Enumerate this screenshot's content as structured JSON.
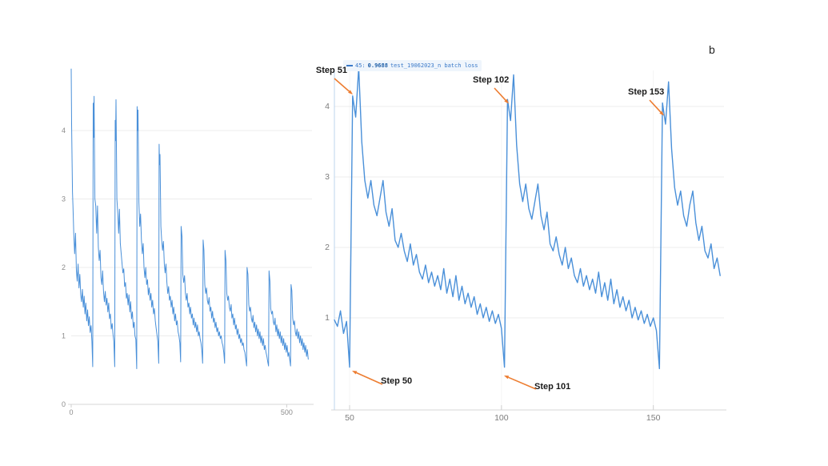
{
  "figure": {
    "panel_label": "b",
    "accent_color": "#ED7D31",
    "line_color": "#4a90d9"
  },
  "tooltip": {
    "step_label": "45:",
    "value": "0.9688",
    "series_name": "test_19062023_n batch loss",
    "text_color": "#3b7ac9",
    "value_color": "#1f5fa8",
    "bg_color": "#eff5fc"
  },
  "chart_data": [
    {
      "id": "overview",
      "type": "line",
      "title": "",
      "xlabel": "",
      "ylabel": "",
      "x_range": [
        0,
        555
      ],
      "y_range": [
        0,
        5
      ],
      "x_ticks": [
        0,
        500
      ],
      "y_ticks": [
        0,
        1,
        2,
        3,
        4
      ],
      "grid": "horizontal",
      "legend": "none",
      "line_color": "#4a90d9",
      "points": [
        [
          0,
          4.9
        ],
        [
          1,
          4.1
        ],
        [
          2,
          3.55
        ],
        [
          3,
          3.1
        ],
        [
          4,
          2.9
        ],
        [
          6,
          2.5
        ],
        [
          8,
          2.2
        ],
        [
          10,
          2.5
        ],
        [
          12,
          1.95
        ],
        [
          14,
          1.8
        ],
        [
          16,
          2.05
        ],
        [
          18,
          1.7
        ],
        [
          20,
          1.9
        ],
        [
          22,
          1.6
        ],
        [
          24,
          1.5
        ],
        [
          26,
          1.68
        ],
        [
          28,
          1.42
        ],
        [
          30,
          1.58
        ],
        [
          32,
          1.32
        ],
        [
          34,
          1.48
        ],
        [
          36,
          1.22
        ],
        [
          38,
          1.38
        ],
        [
          40,
          1.15
        ],
        [
          42,
          1.28
        ],
        [
          44,
          1.05
        ],
        [
          46,
          1.15
        ],
        [
          48,
          0.92
        ],
        [
          50,
          0.55
        ],
        [
          51,
          4.4
        ],
        [
          52,
          3.9
        ],
        [
          53,
          4.5
        ],
        [
          55,
          3.0
        ],
        [
          57,
          2.9
        ],
        [
          59,
          2.5
        ],
        [
          61,
          2.9
        ],
        [
          63,
          2.3
        ],
        [
          65,
          2.1
        ],
        [
          67,
          2.25
        ],
        [
          69,
          1.85
        ],
        [
          71,
          1.75
        ],
        [
          73,
          1.95
        ],
        [
          75,
          1.65
        ],
        [
          77,
          1.5
        ],
        [
          79,
          1.65
        ],
        [
          81,
          1.45
        ],
        [
          83,
          1.55
        ],
        [
          85,
          1.35
        ],
        [
          87,
          1.48
        ],
        [
          89,
          1.25
        ],
        [
          91,
          1.32
        ],
        [
          93,
          1.1
        ],
        [
          95,
          1.18
        ],
        [
          97,
          1.02
        ],
        [
          99,
          0.92
        ],
        [
          101,
          0.55
        ],
        [
          102,
          4.15
        ],
        [
          103,
          3.85
        ],
        [
          104,
          4.45
        ],
        [
          106,
          3.0
        ],
        [
          108,
          2.8
        ],
        [
          110,
          2.5
        ],
        [
          112,
          2.85
        ],
        [
          114,
          2.35
        ],
        [
          116,
          2.2
        ],
        [
          118,
          2.05
        ],
        [
          120,
          1.92
        ],
        [
          122,
          1.98
        ],
        [
          124,
          1.72
        ],
        [
          126,
          1.78
        ],
        [
          128,
          1.55
        ],
        [
          130,
          1.62
        ],
        [
          132,
          1.45
        ],
        [
          134,
          1.6
        ],
        [
          136,
          1.35
        ],
        [
          138,
          1.5
        ],
        [
          140,
          1.25
        ],
        [
          142,
          1.35
        ],
        [
          144,
          1.12
        ],
        [
          146,
          1.2
        ],
        [
          148,
          1.0
        ],
        [
          150,
          0.95
        ],
        [
          152,
          0.52
        ],
        [
          153,
          4.35
        ],
        [
          154,
          4.0
        ],
        [
          155,
          4.3
        ],
        [
          157,
          2.95
        ],
        [
          159,
          2.6
        ],
        [
          161,
          2.78
        ],
        [
          163,
          2.4
        ],
        [
          165,
          2.2
        ],
        [
          167,
          2.35
        ],
        [
          169,
          2.0
        ],
        [
          171,
          1.85
        ],
        [
          173,
          2.0
        ],
        [
          175,
          1.75
        ],
        [
          177,
          1.82
        ],
        [
          179,
          1.6
        ],
        [
          181,
          1.7
        ],
        [
          183,
          1.52
        ],
        [
          185,
          1.62
        ],
        [
          187,
          1.42
        ],
        [
          189,
          1.52
        ],
        [
          191,
          1.32
        ],
        [
          193,
          1.4
        ],
        [
          195,
          1.22
        ],
        [
          197,
          1.12
        ],
        [
          199,
          1.02
        ],
        [
          201,
          0.92
        ],
        [
          203,
          0.6
        ],
        [
          204,
          3.8
        ],
        [
          205,
          3.5
        ],
        [
          206,
          3.65
        ],
        [
          208,
          2.6
        ],
        [
          210,
          2.4
        ],
        [
          212,
          2.25
        ],
        [
          214,
          2.38
        ],
        [
          216,
          2.05
        ],
        [
          218,
          1.92
        ],
        [
          220,
          2.05
        ],
        [
          222,
          1.78
        ],
        [
          224,
          1.62
        ],
        [
          226,
          1.72
        ],
        [
          228,
          1.52
        ],
        [
          230,
          1.58
        ],
        [
          232,
          1.42
        ],
        [
          234,
          1.52
        ],
        [
          236,
          1.32
        ],
        [
          238,
          1.42
        ],
        [
          240,
          1.22
        ],
        [
          242,
          1.32
        ],
        [
          244,
          1.16
        ],
        [
          246,
          1.22
        ],
        [
          248,
          1.06
        ],
        [
          250,
          1.0
        ],
        [
          252,
          0.9
        ],
        [
          254,
          0.62
        ],
        [
          255,
          2.6
        ],
        [
          257,
          2.45
        ],
        [
          259,
          1.9
        ],
        [
          261,
          1.78
        ],
        [
          263,
          1.88
        ],
        [
          265,
          1.62
        ],
        [
          267,
          1.52
        ],
        [
          269,
          1.62
        ],
        [
          271,
          1.42
        ],
        [
          273,
          1.48
        ],
        [
          275,
          1.32
        ],
        [
          277,
          1.42
        ],
        [
          279,
          1.26
        ],
        [
          281,
          1.32
        ],
        [
          283,
          1.16
        ],
        [
          285,
          1.26
        ],
        [
          287,
          1.12
        ],
        [
          289,
          1.2
        ],
        [
          291,
          1.06
        ],
        [
          293,
          1.16
        ],
        [
          295,
          1.0
        ],
        [
          297,
          1.06
        ],
        [
          299,
          0.96
        ],
        [
          301,
          0.9
        ],
        [
          303,
          0.8
        ],
        [
          305,
          0.6
        ],
        [
          306,
          2.4
        ],
        [
          308,
          2.25
        ],
        [
          310,
          1.75
        ],
        [
          312,
          1.62
        ],
        [
          314,
          1.7
        ],
        [
          316,
          1.52
        ],
        [
          318,
          1.46
        ],
        [
          320,
          1.56
        ],
        [
          322,
          1.36
        ],
        [
          324,
          1.42
        ],
        [
          326,
          1.26
        ],
        [
          328,
          1.36
        ],
        [
          330,
          1.2
        ],
        [
          332,
          1.26
        ],
        [
          334,
          1.12
        ],
        [
          336,
          1.2
        ],
        [
          338,
          1.06
        ],
        [
          340,
          1.12
        ],
        [
          342,
          1.0
        ],
        [
          344,
          1.06
        ],
        [
          346,
          0.96
        ],
        [
          348,
          1.0
        ],
        [
          350,
          0.9
        ],
        [
          352,
          0.86
        ],
        [
          354,
          0.76
        ],
        [
          356,
          0.6
        ],
        [
          357,
          2.25
        ],
        [
          359,
          2.1
        ],
        [
          361,
          1.62
        ],
        [
          363,
          1.52
        ],
        [
          365,
          1.58
        ],
        [
          367,
          1.42
        ],
        [
          369,
          1.36
        ],
        [
          371,
          1.46
        ],
        [
          373,
          1.26
        ],
        [
          375,
          1.32
        ],
        [
          377,
          1.16
        ],
        [
          379,
          1.26
        ],
        [
          381,
          1.1
        ],
        [
          383,
          1.16
        ],
        [
          385,
          1.02
        ],
        [
          387,
          1.1
        ],
        [
          389,
          0.96
        ],
        [
          391,
          1.02
        ],
        [
          393,
          0.9
        ],
        [
          395,
          0.96
        ],
        [
          397,
          0.86
        ],
        [
          399,
          0.9
        ],
        [
          401,
          0.8
        ],
        [
          403,
          0.76
        ],
        [
          405,
          0.66
        ],
        [
          407,
          0.56
        ],
        [
          408,
          2.0
        ],
        [
          410,
          1.9
        ],
        [
          412,
          1.46
        ],
        [
          414,
          1.36
        ],
        [
          416,
          1.42
        ],
        [
          418,
          1.26
        ],
        [
          420,
          1.2
        ],
        [
          422,
          1.3
        ],
        [
          424,
          1.12
        ],
        [
          426,
          1.2
        ],
        [
          428,
          1.06
        ],
        [
          430,
          1.16
        ],
        [
          432,
          1.0
        ],
        [
          434,
          1.1
        ],
        [
          436,
          0.96
        ],
        [
          438,
          1.06
        ],
        [
          440,
          0.9
        ],
        [
          442,
          1.0
        ],
        [
          444,
          0.86
        ],
        [
          446,
          0.96
        ],
        [
          448,
          0.8
        ],
        [
          450,
          0.86
        ],
        [
          452,
          0.76
        ],
        [
          454,
          0.7
        ],
        [
          456,
          0.62
        ],
        [
          458,
          0.56
        ],
        [
          459,
          1.95
        ],
        [
          461,
          1.8
        ],
        [
          463,
          1.4
        ],
        [
          465,
          1.32
        ],
        [
          467,
          1.36
        ],
        [
          469,
          1.2
        ],
        [
          471,
          1.16
        ],
        [
          473,
          1.26
        ],
        [
          475,
          1.06
        ],
        [
          477,
          1.16
        ],
        [
          479,
          1.0
        ],
        [
          481,
          1.1
        ],
        [
          483,
          0.96
        ],
        [
          485,
          1.06
        ],
        [
          487,
          0.9
        ],
        [
          489,
          1.0
        ],
        [
          491,
          0.86
        ],
        [
          493,
          0.96
        ],
        [
          495,
          0.8
        ],
        [
          497,
          0.9
        ],
        [
          499,
          0.76
        ],
        [
          501,
          0.86
        ],
        [
          503,
          0.7
        ],
        [
          505,
          0.76
        ],
        [
          507,
          0.66
        ],
        [
          509,
          0.56
        ],
        [
          510,
          1.75
        ],
        [
          512,
          1.66
        ],
        [
          514,
          1.26
        ],
        [
          516,
          1.16
        ],
        [
          518,
          1.22
        ],
        [
          520,
          1.06
        ],
        [
          522,
          1.0
        ],
        [
          524,
          1.1
        ],
        [
          526,
          0.96
        ],
        [
          528,
          1.06
        ],
        [
          530,
          0.9
        ],
        [
          532,
          1.0
        ],
        [
          534,
          0.86
        ],
        [
          536,
          0.96
        ],
        [
          538,
          0.8
        ],
        [
          540,
          0.9
        ],
        [
          542,
          0.76
        ],
        [
          544,
          0.86
        ],
        [
          546,
          0.7
        ],
        [
          548,
          0.8
        ],
        [
          550,
          0.66
        ]
      ]
    },
    {
      "id": "zoomed",
      "type": "line",
      "title": "",
      "xlabel": "",
      "ylabel": "",
      "x_range": [
        45,
        173
      ],
      "y_range": [
        0,
        4.6
      ],
      "x_ticks": [
        50,
        100,
        150
      ],
      "y_ticks": [
        1,
        2,
        3,
        4
      ],
      "grid": "both",
      "legend": "none",
      "line_color": "#4a90d9",
      "x_start": 45,
      "values": [
        0.97,
        0.88,
        1.1,
        0.78,
        0.95,
        0.3,
        4.15,
        3.85,
        4.55,
        3.5,
        2.95,
        2.7,
        2.95,
        2.6,
        2.45,
        2.7,
        2.95,
        2.5,
        2.3,
        2.55,
        2.1,
        2.0,
        2.2,
        1.95,
        1.8,
        2.05,
        1.75,
        1.9,
        1.65,
        1.55,
        1.75,
        1.5,
        1.65,
        1.45,
        1.6,
        1.4,
        1.7,
        1.35,
        1.55,
        1.3,
        1.6,
        1.25,
        1.45,
        1.2,
        1.35,
        1.15,
        1.3,
        1.05,
        1.2,
        1.0,
        1.15,
        0.95,
        1.1,
        0.92,
        1.05,
        0.85,
        0.3,
        4.1,
        3.8,
        4.45,
        3.45,
        2.9,
        2.65,
        2.9,
        2.55,
        2.4,
        2.65,
        2.9,
        2.45,
        2.25,
        2.5,
        2.05,
        1.95,
        2.15,
        1.9,
        1.75,
        2.0,
        1.7,
        1.85,
        1.6,
        1.5,
        1.7,
        1.45,
        1.6,
        1.4,
        1.55,
        1.35,
        1.65,
        1.3,
        1.5,
        1.25,
        1.55,
        1.2,
        1.4,
        1.15,
        1.3,
        1.1,
        1.25,
        1.0,
        1.15,
        0.97,
        1.1,
        0.92,
        1.05,
        0.88,
        1.0,
        0.82,
        0.28,
        4.05,
        3.75,
        4.35,
        3.4,
        2.85,
        2.6,
        2.8,
        2.45,
        2.3,
        2.6,
        2.8,
        2.35,
        2.1,
        2.3,
        1.95,
        1.85,
        2.05,
        1.7,
        1.85,
        1.6
      ],
      "annotations": [
        {
          "label": "Step 51",
          "step": 51,
          "position": "peak"
        },
        {
          "label": "Step 102",
          "step": 102,
          "position": "peak"
        },
        {
          "label": "Step 153",
          "step": 153,
          "position": "peak"
        },
        {
          "label": "Step 50",
          "step": 50,
          "position": "valley"
        },
        {
          "label": "Step 101",
          "step": 101,
          "position": "valley"
        }
      ]
    }
  ]
}
